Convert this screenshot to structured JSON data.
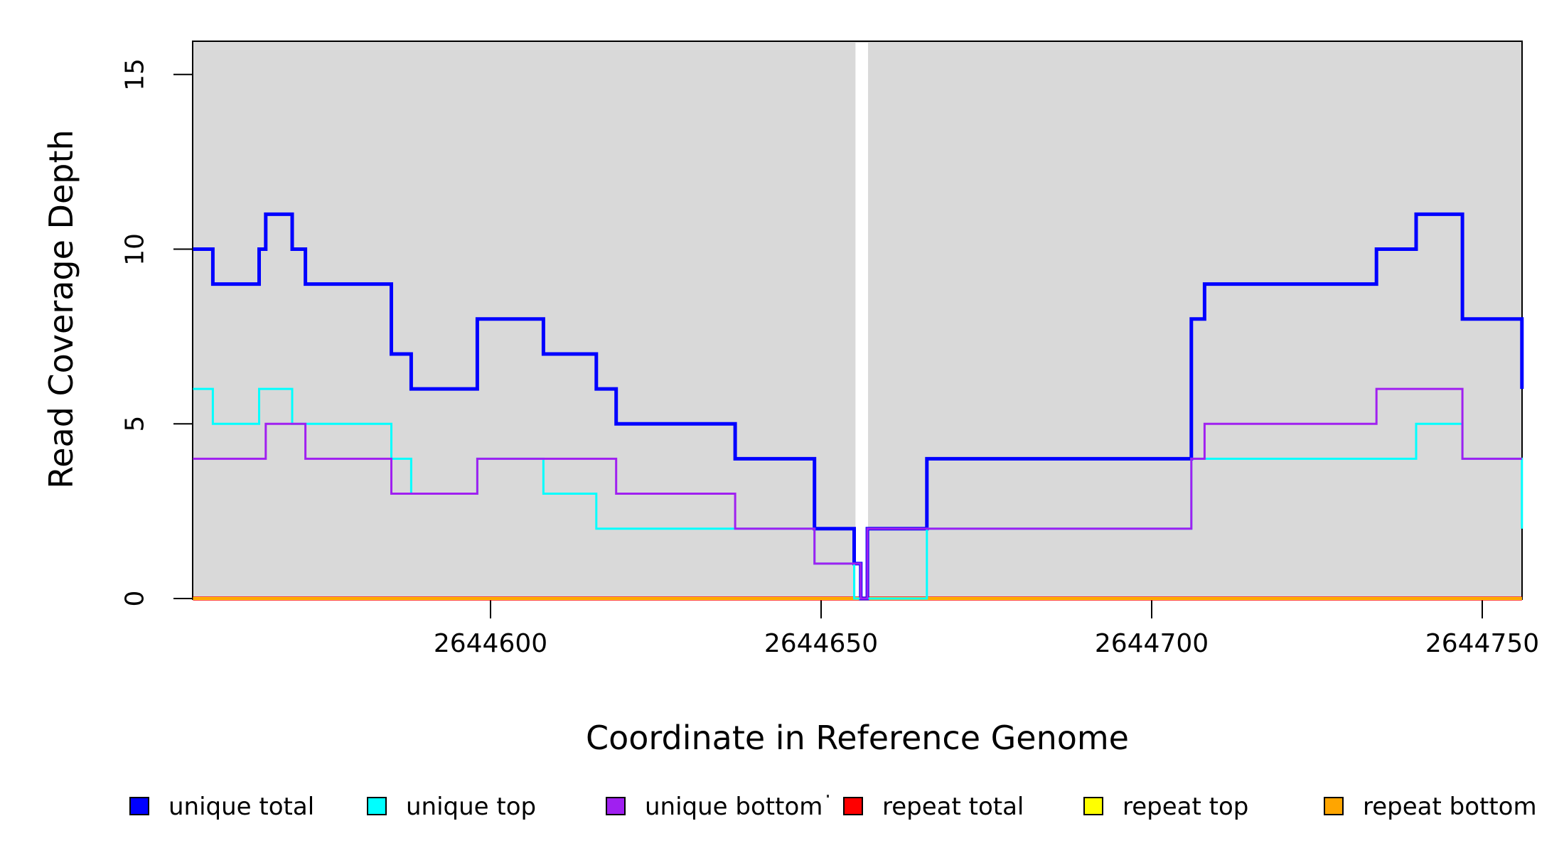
{
  "figure": {
    "kind": "R step coverage plot",
    "plot_bg_color": "#d9d9d9",
    "page_bg_color": "#ffffff",
    "box_border_color": "#000000"
  },
  "axes": {
    "x": {
      "label": "Coordinate in Reference Genome",
      "ticks": [
        2644600,
        2644650,
        2644700,
        2644750
      ],
      "tick_labels": [
        "2644600",
        "2644650",
        "2644700",
        "2644750"
      ],
      "range": [
        2644555,
        2644756
      ]
    },
    "y": {
      "label": "Read Coverage Depth",
      "ticks": [
        0,
        5,
        10,
        15
      ],
      "tick_labels": [
        "0",
        "5",
        "10",
        "15"
      ],
      "range": [
        0,
        16
      ]
    }
  },
  "chart_data": {
    "type": "line",
    "step": true,
    "title": "",
    "xlabel": "Coordinate in Reference Genome",
    "ylabel": "Read Coverage Depth",
    "xlim": [
      2644555,
      2644756
    ],
    "ylim": [
      0,
      16
    ],
    "grid": false,
    "plot_background": "#d9d9d9",
    "zero_coverage_gap": {
      "from": 2644655.2,
      "to": 2644657.1
    },
    "legend_position": "bottom",
    "series": [
      {
        "name": "repeat total",
        "color": "#ff0000",
        "width": 5.5,
        "points": [
          [
            2644555,
            0
          ],
          [
            2644756,
            0
          ]
        ]
      },
      {
        "name": "repeat top",
        "color": "#ffff00",
        "width": 4,
        "points": [
          [
            2644555,
            0
          ],
          [
            2644756,
            0
          ]
        ]
      },
      {
        "name": "repeat bottom",
        "color": "#ffa500",
        "width": 3.2,
        "points": [
          [
            2644555,
            0
          ],
          [
            2644756,
            0
          ]
        ]
      },
      {
        "name": "unique total",
        "color": "#0000ff",
        "width": 5,
        "points": [
          [
            2644555,
            10
          ],
          [
            2644558,
            9
          ],
          [
            2644565,
            10
          ],
          [
            2644566,
            11
          ],
          [
            2644570,
            10
          ],
          [
            2644572,
            9
          ],
          [
            2644585,
            7
          ],
          [
            2644588,
            6
          ],
          [
            2644598,
            8
          ],
          [
            2644608,
            7
          ],
          [
            2644616,
            6
          ],
          [
            2644619,
            5
          ],
          [
            2644637,
            4
          ],
          [
            2644649,
            2
          ],
          [
            2644655,
            1
          ],
          [
            2644656,
            0
          ],
          [
            2644657,
            2
          ],
          [
            2644666,
            4
          ],
          [
            2644706,
            8
          ],
          [
            2644708,
            9
          ],
          [
            2644734,
            10
          ],
          [
            2644740,
            11
          ],
          [
            2644747,
            8
          ],
          [
            2644756,
            6
          ]
        ]
      },
      {
        "name": "unique top",
        "color": "#00ffff",
        "width": 3,
        "points": [
          [
            2644555,
            6
          ],
          [
            2644558,
            5
          ],
          [
            2644565,
            6
          ],
          [
            2644570,
            5
          ],
          [
            2644585,
            4
          ],
          [
            2644588,
            3
          ],
          [
            2644598,
            4
          ],
          [
            2644608,
            3
          ],
          [
            2644616,
            2
          ],
          [
            2644649,
            1
          ],
          [
            2644655,
            0
          ],
          [
            2644666,
            2
          ],
          [
            2644706,
            4
          ],
          [
            2644740,
            5
          ],
          [
            2644747,
            4
          ],
          [
            2644756,
            2
          ]
        ]
      },
      {
        "name": "unique bottom",
        "color": "#a020f0",
        "width": 3,
        "points": [
          [
            2644555,
            4
          ],
          [
            2644566,
            5
          ],
          [
            2644572,
            4
          ],
          [
            2644585,
            3
          ],
          [
            2644598,
            4
          ],
          [
            2644619,
            3
          ],
          [
            2644637,
            2
          ],
          [
            2644649,
            1
          ],
          [
            2644656,
            0
          ],
          [
            2644657,
            2
          ],
          [
            2644706,
            4
          ],
          [
            2644708,
            5
          ],
          [
            2644734,
            6
          ],
          [
            2644747,
            4
          ],
          [
            2644756,
            4
          ]
        ]
      }
    ]
  },
  "legend": {
    "items": [
      {
        "label": "unique total",
        "color": "#0000ff"
      },
      {
        "label": "unique top",
        "color": "#00ffff"
      },
      {
        "label": "unique bottom",
        "color": "#a020f0"
      },
      {
        "label": "repeat total",
        "color": "#ff0000"
      },
      {
        "label": "repeat top",
        "color": "#ffff00"
      },
      {
        "label": "repeat bottom",
        "color": "#ffa500"
      }
    ]
  }
}
